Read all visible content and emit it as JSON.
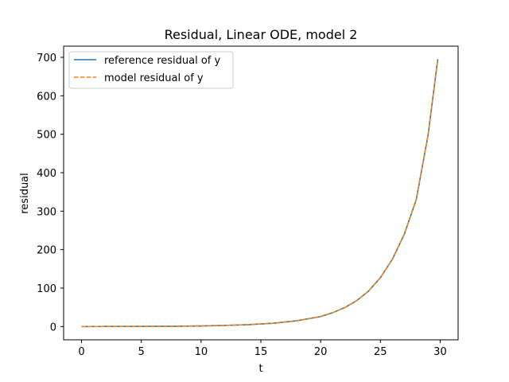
{
  "chart_data": {
    "type": "line",
    "title": "Residual, Linear ODE, model 2",
    "xlabel": "t",
    "ylabel": "residual",
    "xlim": [
      -1.5,
      31.5
    ],
    "ylim": [
      -34.5,
      729
    ],
    "xticks": [
      0,
      5,
      10,
      15,
      20,
      25,
      30
    ],
    "xtick_labels": [
      "0",
      "5",
      "10",
      "15",
      "20",
      "25",
      "30"
    ],
    "yticks": [
      0,
      100,
      200,
      300,
      400,
      500,
      600,
      700
    ],
    "ytick_labels": [
      "0",
      "100",
      "200",
      "300",
      "400",
      "500",
      "600",
      "700"
    ],
    "grid": false,
    "legend_position": "upper-left",
    "series": [
      {
        "name": "reference residual of y",
        "color": "#1f77b4",
        "style": "solid",
        "x": [
          0,
          2,
          4,
          6,
          8,
          10,
          12,
          14,
          16,
          18,
          20,
          21,
          22,
          23,
          24,
          25,
          26,
          27,
          28,
          29,
          29.8
        ],
        "y": [
          0.1,
          0.2,
          0.3,
          0.5,
          0.9,
          1.6,
          3.0,
          5.0,
          8.5,
          15,
          26,
          36,
          49,
          67,
          92,
          127,
          175,
          240,
          330,
          500,
          695
        ]
      },
      {
        "name": "model residual of y",
        "color": "#ff7f0e",
        "style": "dashed",
        "x": [
          0,
          2,
          4,
          6,
          8,
          10,
          12,
          14,
          16,
          18,
          20,
          21,
          22,
          23,
          24,
          25,
          26,
          27,
          28,
          29,
          29.8
        ],
        "y": [
          0.1,
          0.2,
          0.3,
          0.5,
          0.9,
          1.6,
          3.0,
          5.0,
          8.5,
          15,
          26,
          36,
          49,
          67,
          92,
          127,
          175,
          240,
          330,
          500,
          695
        ]
      }
    ]
  }
}
